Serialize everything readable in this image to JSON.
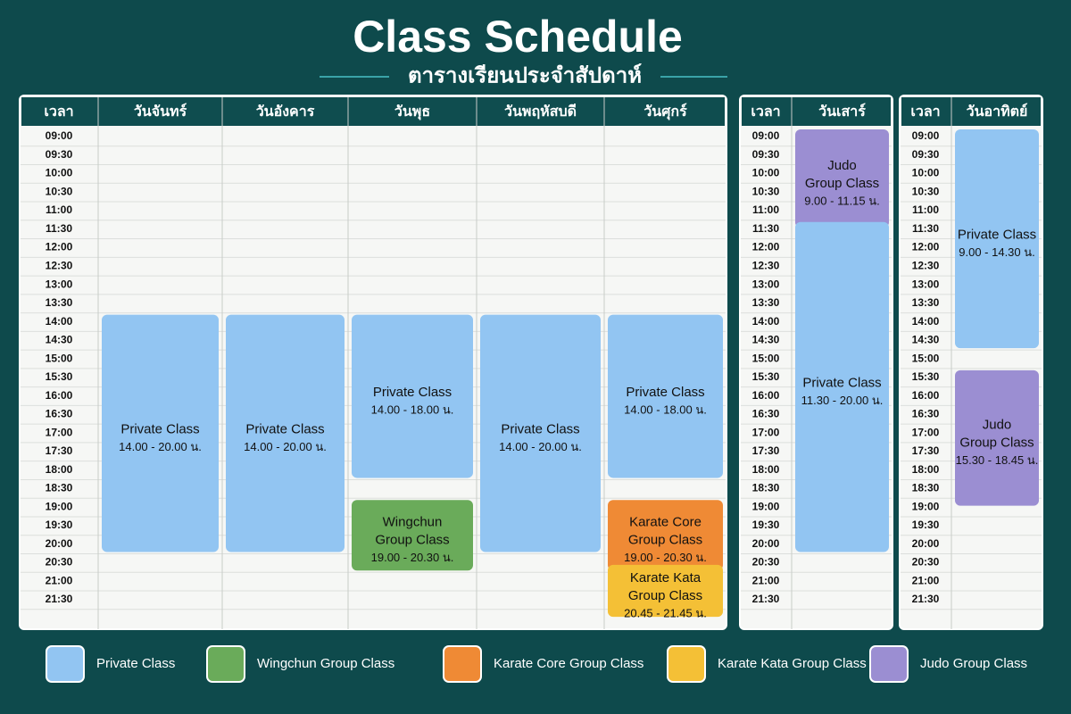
{
  "header": {
    "title": "Class Schedule",
    "subtitle": "ตารางเรียนประจำสัปดาห์"
  },
  "time_header": "เวลา",
  "times": [
    "09:00",
    "09:30",
    "10:00",
    "10:30",
    "11:00",
    "11:30",
    "12:00",
    "12:30",
    "13:00",
    "13:30",
    "14:00",
    "14:30",
    "15:00",
    "15:30",
    "16:00",
    "16:30",
    "17:00",
    "17:30",
    "18:00",
    "18:30",
    "19:00",
    "19:30",
    "20:00",
    "20:30",
    "21:00",
    "21:30"
  ],
  "panels": [
    {
      "days": [
        {
          "name": "วันจันทร์",
          "classes": [
            {
              "lines": [
                "Private Class"
              ],
              "time": "14.00 - 20.00 น.",
              "color": "#92c5f2"
            }
          ]
        },
        {
          "name": "วันอังคาร",
          "classes": [
            {
              "lines": [
                "Private Class"
              ],
              "time": "14.00 - 20.00 น.",
              "color": "#92c5f2"
            }
          ]
        },
        {
          "name": "วันพุธ",
          "classes": [
            {
              "lines": [
                "Private Class"
              ],
              "time": "14.00 - 18.00 น.",
              "color": "#92c5f2"
            },
            {
              "lines": [
                "Wingchun",
                "Group Class"
              ],
              "time": "19.00 - 20.30 น.",
              "color": "#6aab5a"
            }
          ]
        },
        {
          "name": "วันพฤหัสบดี",
          "classes": [
            {
              "lines": [
                "Private Class"
              ],
              "time": "14.00 - 20.00 น.",
              "color": "#92c5f2"
            }
          ]
        },
        {
          "name": "วันศุกร์",
          "classes": [
            {
              "lines": [
                "Private Class"
              ],
              "time": "14.00 - 18.00 น.",
              "color": "#92c5f2"
            },
            {
              "lines": [
                "Karate Core",
                "Group Class"
              ],
              "time": "19.00 - 20.30 น.",
              "color": "#ef8a35"
            },
            {
              "lines": [
                "Karate Kata",
                "Group Class"
              ],
              "time": "20.45 - 21.45 น.",
              "color": "#f4c036"
            }
          ]
        }
      ]
    },
    {
      "days": [
        {
          "name": "วันเสาร์",
          "classes": [
            {
              "lines": [
                "Judo",
                "Group Class"
              ],
              "time": "9.00 - 11.15 น.",
              "color": "#9b8ed2"
            },
            {
              "lines": [
                "Private Class"
              ],
              "time": "11.30 - 20.00 น.",
              "color": "#92c5f2"
            }
          ]
        }
      ]
    },
    {
      "days": [
        {
          "name": "วันอาทิตย์",
          "classes": [
            {
              "lines": [
                "Private Class"
              ],
              "time": "9.00 - 14.30 น.",
              "color": "#92c5f2"
            },
            {
              "lines": [
                "Judo",
                "Group Class"
              ],
              "time": "15.30 - 18.45 น.",
              "color": "#9b8ed2"
            }
          ]
        }
      ]
    }
  ],
  "legend": [
    {
      "label": "Private Class",
      "color": "#92c5f2"
    },
    {
      "label": "Wingchun Group Class",
      "color": "#6aab5a"
    },
    {
      "label": "Karate Core Group Class",
      "color": "#ef8a35"
    },
    {
      "label": "Karate Kata Group Class",
      "color": "#f4c036"
    },
    {
      "label": "Judo Group Class",
      "color": "#9b8ed2"
    }
  ]
}
